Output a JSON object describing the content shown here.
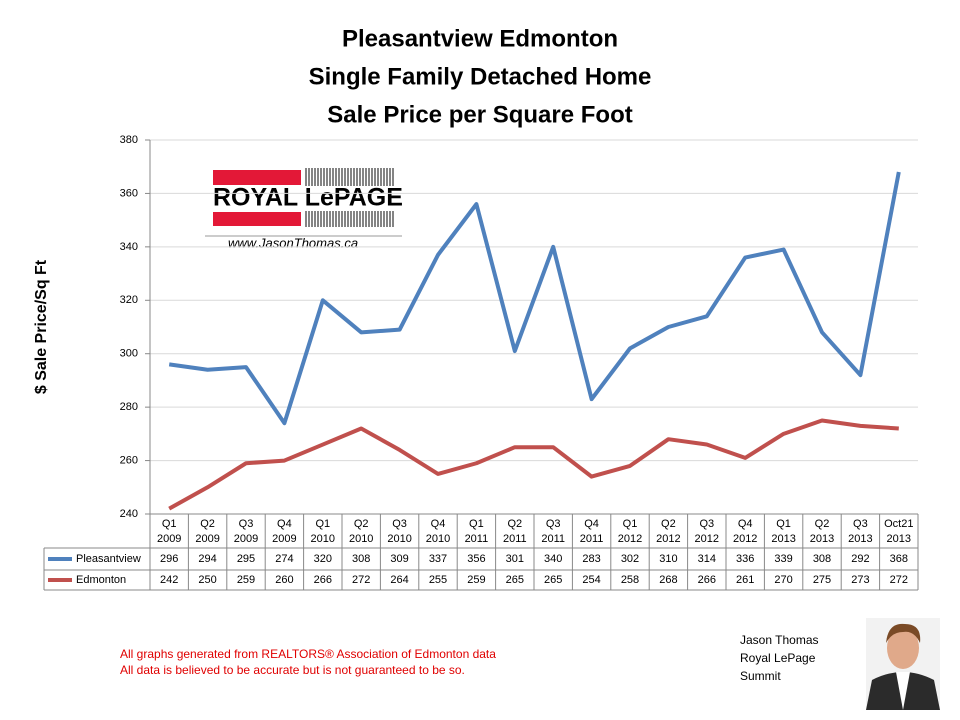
{
  "chart_data": {
    "type": "line",
    "title": [
      "Pleasantview Edmonton",
      "Single Family Detached Home",
      "Sale Price per Square Foot"
    ],
    "y_label": "$ Sale Price/Sq Ft",
    "categories": [
      [
        "Q1",
        "2009"
      ],
      [
        "Q2",
        "2009"
      ],
      [
        "Q3",
        "2009"
      ],
      [
        "Q4",
        "2009"
      ],
      [
        "Q1",
        "2010"
      ],
      [
        "Q2",
        "2010"
      ],
      [
        "Q3",
        "2010"
      ],
      [
        "Q4",
        "2010"
      ],
      [
        "Q1",
        "2011"
      ],
      [
        "Q2",
        "2011"
      ],
      [
        "Q3",
        "2011"
      ],
      [
        "Q4",
        "2011"
      ],
      [
        "Q1",
        "2012"
      ],
      [
        "Q2",
        "2012"
      ],
      [
        "Q3",
        "2012"
      ],
      [
        "Q4",
        "2012"
      ],
      [
        "Q1",
        "2013"
      ],
      [
        "Q2",
        "2013"
      ],
      [
        "Q3",
        "2013"
      ],
      [
        "Oct21",
        "2013"
      ]
    ],
    "series": [
      {
        "name": "Pleasantview",
        "color": "#4f81bd",
        "values": [
          296,
          294,
          295,
          274,
          320,
          308,
          309,
          337,
          356,
          301,
          340,
          283,
          302,
          310,
          314,
          336,
          339,
          308,
          292,
          368
        ]
      },
      {
        "name": "Edmonton",
        "color": "#c0504d",
        "values": [
          242,
          250,
          259,
          260,
          266,
          272,
          264,
          255,
          259,
          265,
          265,
          254,
          258,
          268,
          266,
          261,
          270,
          275,
          273,
          272
        ]
      }
    ],
    "ylim": [
      240,
      380
    ],
    "yticks": [
      240,
      260,
      280,
      300,
      320,
      340,
      360,
      380
    ],
    "grid": true,
    "data_table": true
  },
  "logo": {
    "brand": "ROYAL LePAGE",
    "url": "www.JasonThomas.ca"
  },
  "footnotes": [
    "All graphs generated from REALTORS® Association of Edmonton data",
    "All data is believed to be accurate but is not guaranteed to be so."
  ],
  "agent": [
    "Jason Thomas",
    "Royal LePage",
    "Summit"
  ]
}
